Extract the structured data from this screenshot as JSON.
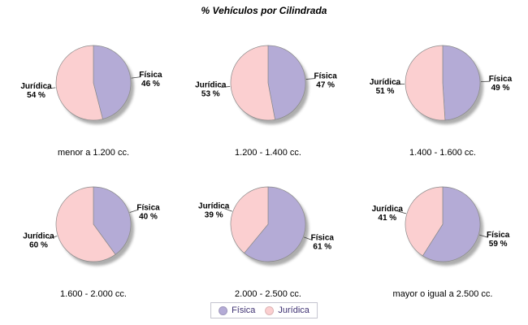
{
  "chart_data": {
    "type": "pie",
    "title": "% Vehículos por Cilindrada",
    "value_suffix": " %",
    "legend": {
      "position": "bottom",
      "entries": [
        {
          "label": "Física",
          "color": "#B4ABD6"
        },
        {
          "label": "Jurídica",
          "color": "#FBCFD0"
        }
      ]
    },
    "style": {
      "slice_outline": "#8a8a8a",
      "leader_line": "#404040",
      "shadow": "#999999",
      "label_color": "#000000"
    },
    "pies": [
      {
        "caption": "menor a 1.200 cc.",
        "slices": [
          {
            "label": "Física",
            "value": 46
          },
          {
            "label": "Jurídica",
            "value": 54
          }
        ]
      },
      {
        "caption": "1.200 - 1.400 cc.",
        "slices": [
          {
            "label": "Física",
            "value": 47
          },
          {
            "label": "Jurídica",
            "value": 53
          }
        ]
      },
      {
        "caption": "1.400 - 1.600 cc.",
        "slices": [
          {
            "label": "Física",
            "value": 49
          },
          {
            "label": "Jurídica",
            "value": 51
          }
        ]
      },
      {
        "caption": "1.600 - 2.000 cc.",
        "slices": [
          {
            "label": "Física",
            "value": 40
          },
          {
            "label": "Jurídica",
            "value": 60
          }
        ]
      },
      {
        "caption": "2.000 - 2.500 cc.",
        "slices": [
          {
            "label": "Física",
            "value": 61
          },
          {
            "label": "Jurídica",
            "value": 39
          }
        ]
      },
      {
        "caption": "mayor o igual a 2.500 cc.",
        "slices": [
          {
            "label": "Física",
            "value": 59
          },
          {
            "label": "Jurídica",
            "value": 41
          }
        ]
      }
    ]
  }
}
